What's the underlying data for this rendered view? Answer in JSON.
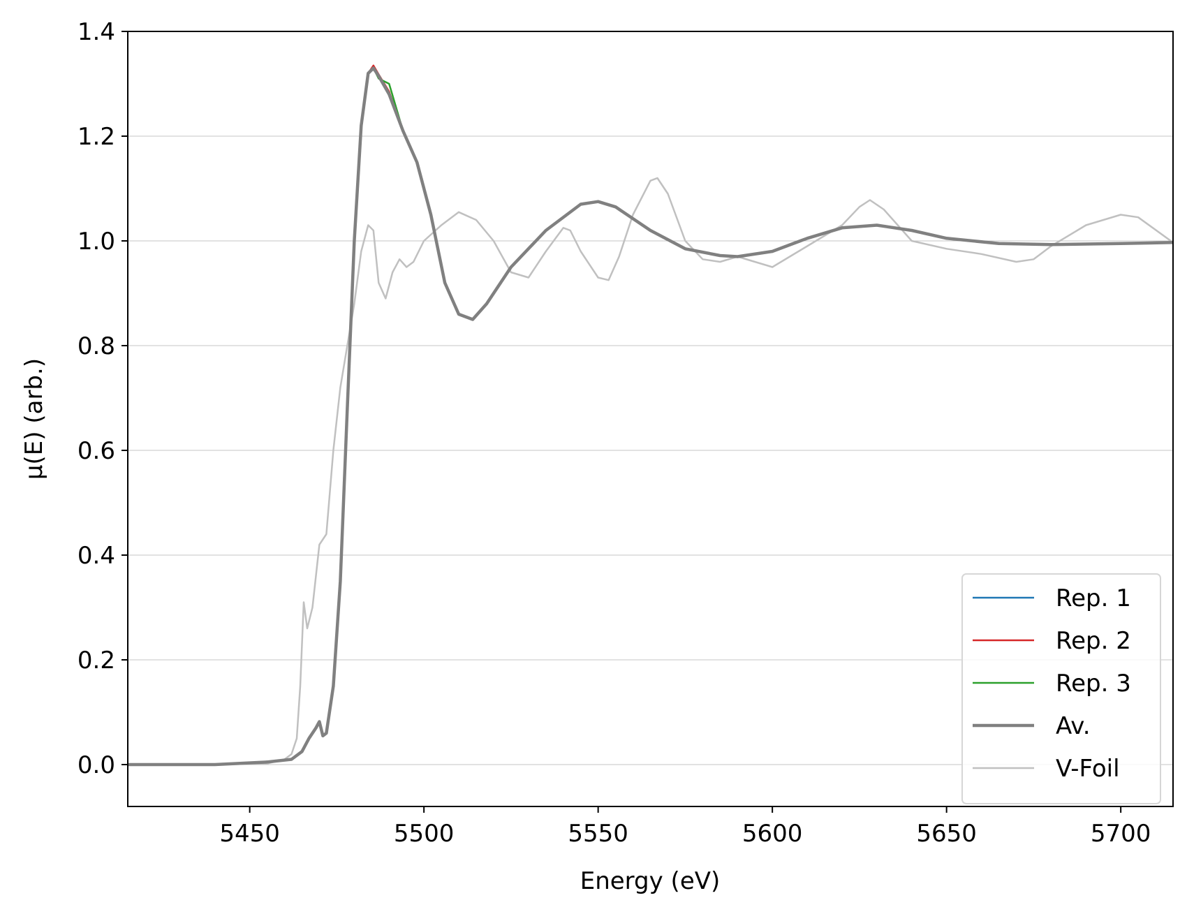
{
  "chart_data": {
    "type": "line",
    "xlabel": "Energy (eV)",
    "ylabel": "μ(E) (arb.)",
    "xlim": [
      5415,
      5715
    ],
    "ylim": [
      -0.08,
      1.4
    ],
    "xticks": [
      5450,
      5500,
      5550,
      5600,
      5650,
      5700
    ],
    "xtick_labels": [
      "5450",
      "5500",
      "5550",
      "5600",
      "5650",
      "5700"
    ],
    "yticks": [
      0.0,
      0.2,
      0.4,
      0.6,
      0.8,
      1.0,
      1.2,
      1.4
    ],
    "ytick_labels": [
      "0.0",
      "0.2",
      "0.4",
      "0.6",
      "0.8",
      "1.0",
      "1.2",
      "1.4"
    ],
    "grid": "horizontal",
    "legend_position": "lower-right",
    "series": [
      {
        "name": "Rep. 1",
        "color": "#1f77b4",
        "width": 2.5,
        "x": [
          5415,
          5440,
          5455,
          5462,
          5465,
          5467,
          5469,
          5470,
          5471,
          5472,
          5474,
          5476,
          5478,
          5480,
          5482,
          5484,
          5485.5,
          5487,
          5490,
          5494,
          5498,
          5502,
          5506,
          5510,
          5514,
          5518,
          5525,
          5535,
          5545,
          5550,
          5555,
          5565,
          5575,
          5585,
          5590,
          5600,
          5610,
          5620,
          5630,
          5640,
          5650,
          5665,
          5680,
          5700,
          5715
        ],
        "y": [
          0.0,
          0.0,
          0.005,
          0.01,
          0.025,
          0.05,
          0.07,
          0.082,
          0.055,
          0.06,
          0.15,
          0.35,
          0.68,
          1.0,
          1.22,
          1.32,
          1.33,
          1.315,
          1.28,
          1.21,
          1.15,
          1.05,
          0.92,
          0.86,
          0.85,
          0.88,
          0.95,
          1.02,
          1.07,
          1.075,
          1.065,
          1.02,
          0.985,
          0.972,
          0.97,
          0.98,
          1.005,
          1.025,
          1.03,
          1.02,
          1.005,
          0.995,
          0.993,
          0.995,
          0.997
        ]
      },
      {
        "name": "Rep. 2",
        "color": "#d62728",
        "width": 2.5,
        "x": [
          5415,
          5440,
          5455,
          5462,
          5465,
          5467,
          5469,
          5470,
          5471,
          5472,
          5474,
          5476,
          5478,
          5480,
          5482,
          5484,
          5485.5,
          5487,
          5490,
          5494,
          5498,
          5502,
          5506,
          5510,
          5514,
          5518,
          5525,
          5535,
          5545,
          5550,
          5555,
          5565,
          5575,
          5585,
          5590,
          5600,
          5610,
          5620,
          5630,
          5640,
          5650,
          5665,
          5680,
          5700,
          5715
        ],
        "y": [
          0.0,
          0.0,
          0.005,
          0.01,
          0.025,
          0.05,
          0.07,
          0.082,
          0.055,
          0.06,
          0.15,
          0.35,
          0.68,
          1.0,
          1.22,
          1.32,
          1.335,
          1.318,
          1.285,
          1.21,
          1.15,
          1.05,
          0.92,
          0.86,
          0.85,
          0.88,
          0.95,
          1.02,
          1.07,
          1.075,
          1.065,
          1.02,
          0.985,
          0.972,
          0.97,
          0.98,
          1.005,
          1.025,
          1.03,
          1.02,
          1.005,
          0.995,
          0.993,
          0.995,
          0.997
        ]
      },
      {
        "name": "Rep. 3",
        "color": "#2ca02c",
        "width": 2.5,
        "x": [
          5415,
          5440,
          5455,
          5462,
          5465,
          5467,
          5469,
          5470,
          5471,
          5472,
          5474,
          5476,
          5478,
          5480,
          5482,
          5484,
          5485.5,
          5487,
          5490,
          5494,
          5498,
          5502,
          5506,
          5510,
          5514,
          5518,
          5525,
          5535,
          5545,
          5550,
          5555,
          5565,
          5575,
          5585,
          5590,
          5600,
          5610,
          5620,
          5630,
          5640,
          5650,
          5665,
          5680,
          5700,
          5715
        ],
        "y": [
          0.0,
          0.0,
          0.005,
          0.01,
          0.025,
          0.05,
          0.07,
          0.082,
          0.055,
          0.06,
          0.15,
          0.35,
          0.68,
          1.0,
          1.22,
          1.32,
          1.33,
          1.31,
          1.3,
          1.21,
          1.15,
          1.05,
          0.92,
          0.86,
          0.85,
          0.88,
          0.95,
          1.02,
          1.07,
          1.075,
          1.065,
          1.02,
          0.985,
          0.972,
          0.97,
          0.98,
          1.005,
          1.025,
          1.03,
          1.02,
          1.005,
          0.995,
          0.993,
          0.995,
          0.997
        ]
      },
      {
        "name": "Av.",
        "color": "#808080",
        "width": 4.5,
        "x": [
          5415,
          5440,
          5455,
          5462,
          5465,
          5467,
          5469,
          5470,
          5471,
          5472,
          5474,
          5476,
          5478,
          5480,
          5482,
          5484,
          5485.5,
          5487,
          5490,
          5494,
          5498,
          5502,
          5506,
          5510,
          5514,
          5518,
          5525,
          5535,
          5545,
          5550,
          5555,
          5565,
          5575,
          5585,
          5590,
          5600,
          5610,
          5620,
          5630,
          5640,
          5650,
          5665,
          5680,
          5700,
          5715
        ],
        "y": [
          0.0,
          0.0,
          0.005,
          0.01,
          0.025,
          0.05,
          0.07,
          0.082,
          0.055,
          0.06,
          0.15,
          0.35,
          0.68,
          1.0,
          1.22,
          1.32,
          1.33,
          1.315,
          1.28,
          1.21,
          1.15,
          1.05,
          0.92,
          0.86,
          0.85,
          0.88,
          0.95,
          1.02,
          1.07,
          1.075,
          1.065,
          1.02,
          0.985,
          0.972,
          0.97,
          0.98,
          1.005,
          1.025,
          1.03,
          1.02,
          1.005,
          0.995,
          0.993,
          0.995,
          0.997
        ]
      },
      {
        "name": "V-Foil",
        "color": "#c0c0c0",
        "width": 2.5,
        "x": [
          5415,
          5440,
          5455,
          5460,
          5462,
          5463.5,
          5464.5,
          5465.5,
          5466.5,
          5468,
          5470,
          5472,
          5474,
          5476,
          5478,
          5480,
          5482,
          5484,
          5485.5,
          5487,
          5489,
          5491,
          5493,
          5495,
          5497,
          5500,
          5505,
          5510,
          5515,
          5520,
          5525,
          5530,
          5535,
          5540,
          5542,
          5545,
          5550,
          5553,
          5556,
          5560,
          5565,
          5567,
          5570,
          5575,
          5580,
          5585,
          5590,
          5595,
          5600,
          5605,
          5610,
          5615,
          5620,
          5625,
          5628,
          5632,
          5640,
          5650,
          5660,
          5670,
          5675,
          5680,
          5690,
          5700,
          5705,
          5715
        ],
        "y": [
          0.0,
          0.0,
          0.002,
          0.01,
          0.02,
          0.05,
          0.15,
          0.31,
          0.26,
          0.3,
          0.42,
          0.44,
          0.6,
          0.72,
          0.8,
          0.88,
          0.98,
          1.03,
          1.02,
          0.92,
          0.89,
          0.94,
          0.965,
          0.95,
          0.96,
          1.0,
          1.03,
          1.055,
          1.04,
          1.0,
          0.94,
          0.93,
          0.98,
          1.025,
          1.02,
          0.98,
          0.93,
          0.925,
          0.97,
          1.05,
          1.115,
          1.12,
          1.09,
          1.0,
          0.965,
          0.96,
          0.97,
          0.96,
          0.95,
          0.97,
          0.99,
          1.01,
          1.03,
          1.065,
          1.078,
          1.06,
          1.0,
          0.985,
          0.975,
          0.96,
          0.965,
          0.99,
          1.03,
          1.05,
          1.045,
          0.997
        ]
      }
    ]
  }
}
